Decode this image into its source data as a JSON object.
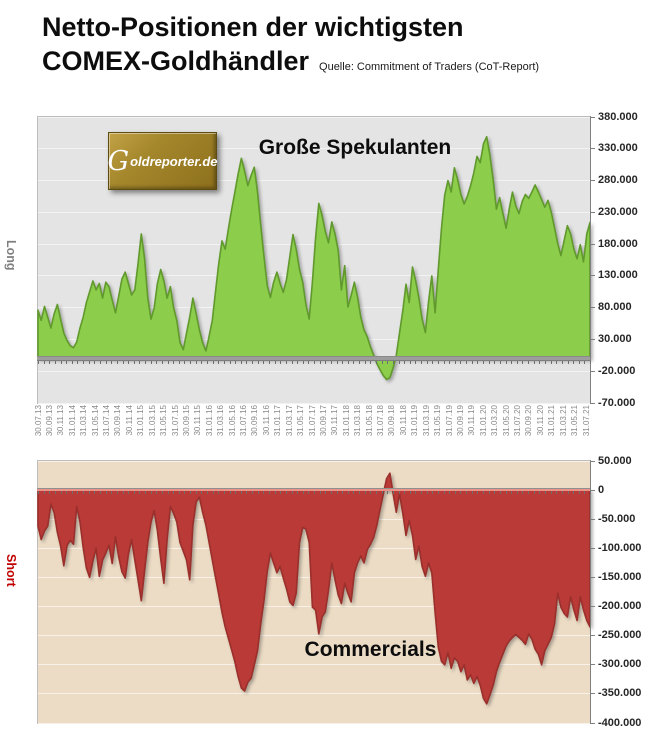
{
  "page": {
    "title_line1": "Netto-Positionen der wichtigsten",
    "title_line2": "COMEX-Goldhändler",
    "source": "Quelle: Commitment of Traders (CoT-Report)",
    "logo_g": "G",
    "logo_rest": "oldreporter.de"
  },
  "chart_data": [
    {
      "type": "area",
      "name": "speculators",
      "title": "Große Spekulanten",
      "side_label": "Long",
      "values_unit": "contracts (thousands)",
      "ylim": [
        -70000,
        380000
      ],
      "y_tick_values": [
        380,
        330,
        280,
        230,
        180,
        130,
        80,
        30,
        -20,
        -70
      ],
      "y_tick_labels": [
        "380.000",
        "330.000",
        "280.000",
        "230.000",
        "180.000",
        "130.000",
        "80.000",
        "30.000",
        "-20.000",
        "-70.000"
      ],
      "x_tick_labels": [
        "30.07.13",
        "30.09.13",
        "30.11.13",
        "31.01.14",
        "31.03.14",
        "31.05.14",
        "31.07.14",
        "30.09.14",
        "30.11.14",
        "31.01.15",
        "31.03.15",
        "31.05.15",
        "31.07.15",
        "30.09.15",
        "30.11.15",
        "31.01.16",
        "31.03.16",
        "31.05.16",
        "31.07.16",
        "30.09.16",
        "30.11.16",
        "31.01.17",
        "31.03.17",
        "31.05.17",
        "31.07.17",
        "30.09.17",
        "30.11.17",
        "31.01.18",
        "31.03.18",
        "31.05.18",
        "31.07.18",
        "30.09.18",
        "30.11.18",
        "31.01.19",
        "31.03.19",
        "31.05.19",
        "31.07.19",
        "30.09.19",
        "30.11.19",
        "31.01.20",
        "31.03.20",
        "31.05.20",
        "31.07.20",
        "30.09.20",
        "30.11.20",
        "31.01.21",
        "31.03.21",
        "31.05.21",
        "31.07.21"
      ],
      "values": [
        76,
        60,
        82,
        65,
        48,
        70,
        85,
        62,
        40,
        28,
        20,
        17,
        26,
        48,
        65,
        88,
        105,
        122,
        108,
        118,
        95,
        120,
        113,
        92,
        72,
        98,
        125,
        136,
        118,
        100,
        108,
        150,
        196,
        158,
        95,
        62,
        80,
        118,
        140,
        122,
        95,
        113,
        80,
        60,
        25,
        14,
        40,
        65,
        95,
        70,
        45,
        25,
        12,
        35,
        60,
        105,
        150,
        185,
        172,
        205,
        235,
        262,
        290,
        315,
        295,
        272,
        288,
        301,
        262,
        210,
        160,
        115,
        96,
        120,
        136,
        118,
        104,
        125,
        160,
        195,
        172,
        140,
        120,
        85,
        62,
        120,
        190,
        244,
        225,
        200,
        182,
        215,
        196,
        170,
        108,
        146,
        81,
        99,
        120,
        96,
        65,
        45,
        34,
        18,
        5,
        -8,
        -18,
        -27,
        -33,
        -30,
        -15,
        5,
        40,
        75,
        117,
        88,
        144,
        122,
        95,
        62,
        41,
        90,
        130,
        72,
        140,
        205,
        257,
        280,
        262,
        300,
        282,
        258,
        243,
        255,
        272,
        292,
        318,
        308,
        338,
        349,
        320,
        281,
        235,
        253,
        229,
        205,
        236,
        262,
        240,
        228,
        247,
        258,
        252,
        262,
        273,
        262,
        250,
        238,
        249,
        230,
        206,
        181,
        162,
        186,
        209,
        196,
        172,
        157,
        179,
        152,
        196,
        214
      ],
      "colors": {
        "fill": "#8ccd4b",
        "edge": "#60992c",
        "plot_bg": "#e4e4e4",
        "grid": "#f3f3f3",
        "side_label": "#7f7f7f"
      }
    },
    {
      "type": "area",
      "name": "commercials",
      "title": "Commercials",
      "side_label": "Short",
      "values_unit": "contracts (thousands)",
      "ylim": [
        -400000,
        50000
      ],
      "y_tick_values": [
        50,
        0,
        -50,
        -100,
        -150,
        -200,
        -250,
        -300,
        -350,
        -400
      ],
      "y_tick_labels": [
        "50.000",
        "0",
        "-50.000",
        "-100.000",
        "-150.000",
        "-200.000",
        "-250.000",
        "-300.000",
        "-350.000",
        "-400.000"
      ],
      "values": [
        -62,
        -85,
        -70,
        -62,
        -24,
        -38,
        -73,
        -96,
        -130,
        -95,
        -86,
        -93,
        -28,
        -55,
        -99,
        -134,
        -150,
        -122,
        -100,
        -148,
        -120,
        -108,
        -95,
        -126,
        -80,
        -115,
        -140,
        -151,
        -110,
        -85,
        -120,
        -155,
        -190,
        -140,
        -90,
        -55,
        -35,
        -70,
        -118,
        -160,
        -85,
        -28,
        -40,
        -55,
        -90,
        -105,
        -120,
        -154,
        -60,
        -20,
        -12,
        -38,
        -60,
        -90,
        -120,
        -150,
        -180,
        -210,
        -235,
        -255,
        -275,
        -295,
        -320,
        -340,
        -345,
        -330,
        -323,
        -300,
        -276,
        -230,
        -189,
        -140,
        -108,
        -125,
        -142,
        -131,
        -151,
        -170,
        -192,
        -198,
        -177,
        -90,
        -64,
        -67,
        -90,
        -201,
        -206,
        -247,
        -218,
        -209,
        -172,
        -125,
        -154,
        -180,
        -195,
        -160,
        -177,
        -192,
        -142,
        -125,
        -113,
        -125,
        -102,
        -93,
        -81,
        -60,
        -32,
        -6,
        20,
        29,
        -6,
        -38,
        -6,
        -40,
        -78,
        -52,
        -78,
        -119,
        -96,
        -131,
        -148,
        -125,
        -142,
        -210,
        -270,
        -294,
        -300,
        -279,
        -306,
        -288,
        -294,
        -312,
        -300,
        -326,
        -317,
        -332,
        -320,
        -335,
        -358,
        -367,
        -352,
        -335,
        -312,
        -296,
        -282,
        -268,
        -259,
        -253,
        -248,
        -253,
        -258,
        -265,
        -247,
        -256,
        -273,
        -282,
        -300,
        -276,
        -265,
        -253,
        -230,
        -177,
        -201,
        -212,
        -218,
        -183,
        -206,
        -224,
        -183,
        -206,
        -224,
        -235
      ],
      "colors": {
        "fill": "#b93a37",
        "edge": "#9a2f2b",
        "plot_bg": "#ecdcc5",
        "grid": "#f8f1e7",
        "side_label": "#c00000",
        "zero_edge": "#ea9287"
      }
    }
  ]
}
